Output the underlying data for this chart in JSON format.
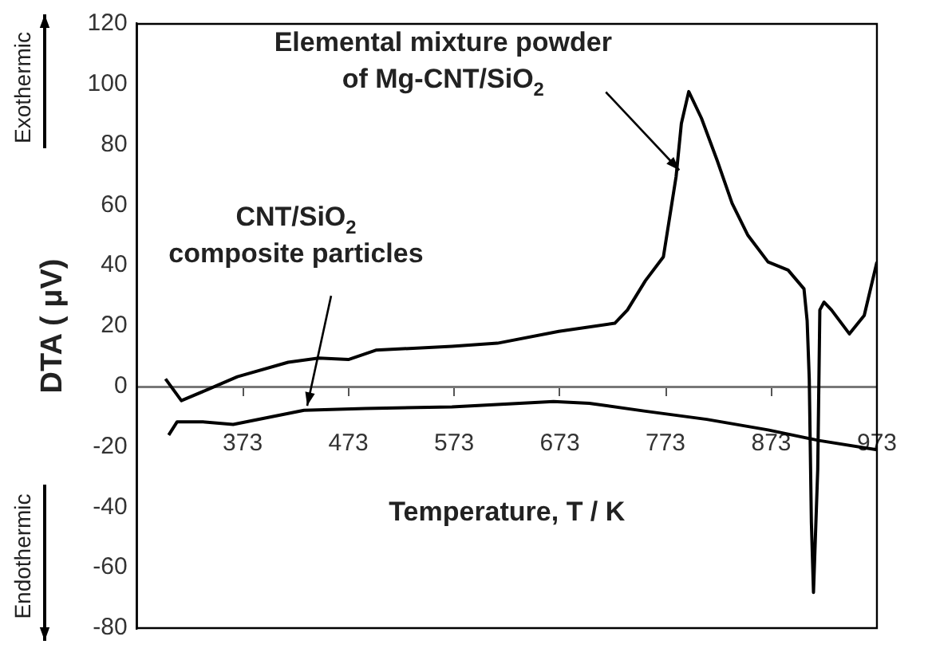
{
  "chart_data": {
    "type": "line",
    "xlabel": "Temperature, T / K",
    "ylabel": "DTA ( μV)",
    "xlim": [
      273,
      973
    ],
    "xticks": [
      373,
      473,
      573,
      673,
      773,
      873,
      973
    ],
    "ylim": [
      -80,
      120
    ],
    "yticks": [
      -80,
      -60,
      -40,
      -20,
      0,
      20,
      40,
      60,
      80,
      100,
      120
    ],
    "grid": false,
    "legend": false,
    "marker": "none",
    "line_style": "solid",
    "series": [
      {
        "color": "#000000",
        "x": [
          300,
          315,
          340,
          368,
          416,
          445,
          473,
          499,
          571,
          614,
          672,
          725,
          737,
          754,
          771,
          783,
          788,
          795,
          807,
          822,
          836,
          851,
          870,
          889,
          904,
          907,
          909,
          911,
          913,
          917,
          919,
          923,
          930,
          947,
          961,
          973
        ],
        "values": [
          2.5,
          -4.7,
          -1,
          3.2,
          8,
          9.4,
          8.9,
          12,
          13.3,
          14.3,
          18.2,
          20.9,
          25.3,
          35,
          42.9,
          69.4,
          87,
          97.6,
          88.8,
          74.7,
          60.6,
          50,
          41.2,
          38.5,
          32.3,
          21.7,
          2.5,
          -45,
          -68.2,
          -27.6,
          25.3,
          27.9,
          25.3,
          17.4,
          23.5,
          41.2
        ]
      },
      {
        "color": "#000000",
        "x": [
          303,
          311,
          335,
          364,
          431,
          489,
          571,
          667,
          701,
          754,
          812,
          870,
          918,
          973
        ],
        "values": [
          -16.1,
          -11.7,
          -11.7,
          -12.6,
          -7.9,
          -7.3,
          -6.8,
          -5,
          -5.6,
          -8.2,
          -10.9,
          -14.4,
          -17.9,
          -21
        ]
      }
    ],
    "annotations": [
      {
        "text": "Elemental mixture powder\nof Mg-CNT/SiO$_{2}$",
        "x": 783,
        "y": 70
      },
      {
        "text": "CNT/SiO$_{2}$\ncomposite particles",
        "x": 431,
        "y": -8
      },
      "Exothermic",
      "Endothermic"
    ]
  }
}
